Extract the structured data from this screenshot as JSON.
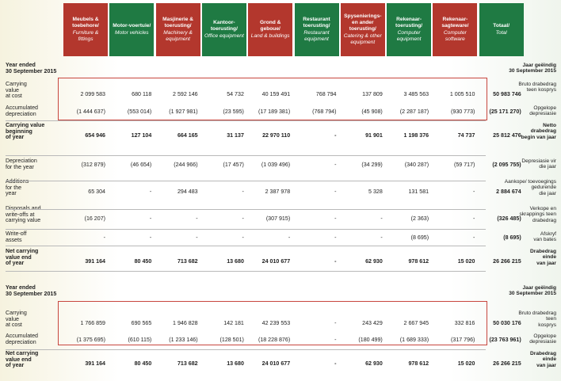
{
  "columns": [
    {
      "af": "Meubels & toebehore/",
      "en": "Furniture & fittings",
      "color": "#b3372d"
    },
    {
      "af": "Motor-voertuie/",
      "en": "Motor vehicles",
      "color": "#1f7a43"
    },
    {
      "af": "Masjinerie & toerusting/",
      "en": "Machinery & equipment",
      "color": "#b3372d"
    },
    {
      "af": "Kantoor-toerusting/",
      "en": "Office equipment",
      "color": "#1f7a43"
    },
    {
      "af": "Grond & geboue/",
      "en": "Land & buildings",
      "color": "#b3372d"
    },
    {
      "af": "Restaurant toerusting/",
      "en": "Restaurant equipment",
      "color": "#1f7a43"
    },
    {
      "af": "Spysenierings-en ander toerusting/",
      "en": "Catering & other equipment",
      "color": "#b3372d"
    },
    {
      "af": "Rekenaar-toerusting/",
      "en": "Computer equipment",
      "color": "#1f7a43"
    },
    {
      "af": "Rekenaar-sagteware/",
      "en": "Computer software",
      "color": "#b3372d"
    },
    {
      "af": "Totaal/",
      "en": "Total",
      "color": "#1f7a43"
    }
  ],
  "section1": {
    "title_en": "Year ended\n30 September 2015",
    "title_af": "Jaar geëindig\n30 September 2015",
    "rows": [
      {
        "en": "Carrying\nvalue\nat cost",
        "af": "Bruto drabedrag\nteen kosprys",
        "bold": false,
        "values": [
          "2 099 583",
          "680 118",
          "2 592 146",
          "54 732",
          "40 159 491",
          "768 794",
          "137 809",
          "3 485 563",
          "1 005 510",
          "50 983 746"
        ]
      },
      {
        "en": "Accumulated\ndepreciation",
        "af": "Opgelope\ndepresiasie",
        "bold": false,
        "values": [
          "(1 444 637)",
          "(553 014)",
          "(1 927 981)",
          "(23 595)",
          "(17 189 381)",
          "(768 794)",
          "(45 908)",
          "(2 287 187)",
          "(930 773)",
          "(25 171 270)"
        ]
      },
      {
        "en": "Carrying value\nbeginning\nof year",
        "af": "Netto\ndrabedrag\nbegin van jaar",
        "bold": true,
        "values": [
          "654 946",
          "127 104",
          "664 165",
          "31 137",
          "22 970 110",
          "-",
          "91 901",
          "1 198 376",
          "74 737",
          "25 812 476"
        ]
      },
      {
        "en": "Depreciation\nfor the year",
        "af": "Depresiasie vir\ndie jaar",
        "bold": false,
        "values": [
          "(312 879)",
          "(46 654)",
          "(244 966)",
          "(17 457)",
          "(1 039 496)",
          "-",
          "(34 299)",
          "(340 287)",
          "(59 717)",
          "(2 095 755)"
        ]
      },
      {
        "en": "Additions\nfor the\nyear",
        "af": "Aankope/ toevoegings\ngedurende\ndie jaar",
        "bold": false,
        "values": [
          "65 304",
          "-",
          "294 483",
          "-",
          "2 387 978",
          "-",
          "5 328",
          "131 581",
          "-",
          "2 884 674"
        ]
      },
      {
        "en": "Disposals and\nwrite-offs at\ncarrying value",
        "af": "Verkope en\nskrappings teen\ndrabedrag",
        "bold": false,
        "values": [
          "(16 207)",
          "-",
          "-",
          "-",
          "(307 915)",
          "-",
          "-",
          "(2 363)",
          "-",
          "(326 485)"
        ]
      },
      {
        "en": "Write-off\nassets",
        "af": "Afskryf\nvan bates",
        "bold": false,
        "values": [
          "-",
          "-",
          "-",
          "-",
          "-",
          "-",
          "-",
          "(8 695)",
          "-",
          "(8 695)"
        ]
      },
      {
        "en": "Net carrying\nvalue end\nof year",
        "af": "Drabedrag\neinde\nvan jaar",
        "bold": true,
        "values": [
          "391 164",
          "80 450",
          "713 682",
          "13 680",
          "24 010 677",
          "-",
          "62 930",
          "978 612",
          "15 020",
          "26 266 215"
        ]
      }
    ]
  },
  "section2": {
    "title_en": "Year ended\n30 September 2015",
    "title_af": "Jaar geëindig\n30 September 2015",
    "rows": [
      {
        "en": "Carrying\nvalue\nat cost",
        "af": "Bruto drabedrag\nteen\nkosprys",
        "bold": false,
        "values": [
          "1 766 859",
          "690 565",
          "1 946 828",
          "142 181",
          "42 239 553",
          "-",
          "243 429",
          "2 667 945",
          "332 816",
          "50 030 176"
        ]
      },
      {
        "en": "Accumulated\ndepreciation",
        "af": "Opgelope\ndepresiasie",
        "bold": false,
        "values": [
          "(1 375 695)",
          "(610 115)",
          "(1 233 146)",
          "(128 501)",
          "(18 228 876)",
          "-",
          "(180 499)",
          "(1 689 333)",
          "(317 796)",
          "(23 763 961)"
        ]
      },
      {
        "en": "Net carrying\nvalue end\nof year",
        "af": "Drabedrag\neinde\nvan jaar",
        "bold": true,
        "values": [
          "391 164",
          "80 450",
          "713 682",
          "13 680",
          "24 010 677",
          "-",
          "62 930",
          "978 612",
          "15 020",
          "26 266 215"
        ]
      }
    ]
  }
}
